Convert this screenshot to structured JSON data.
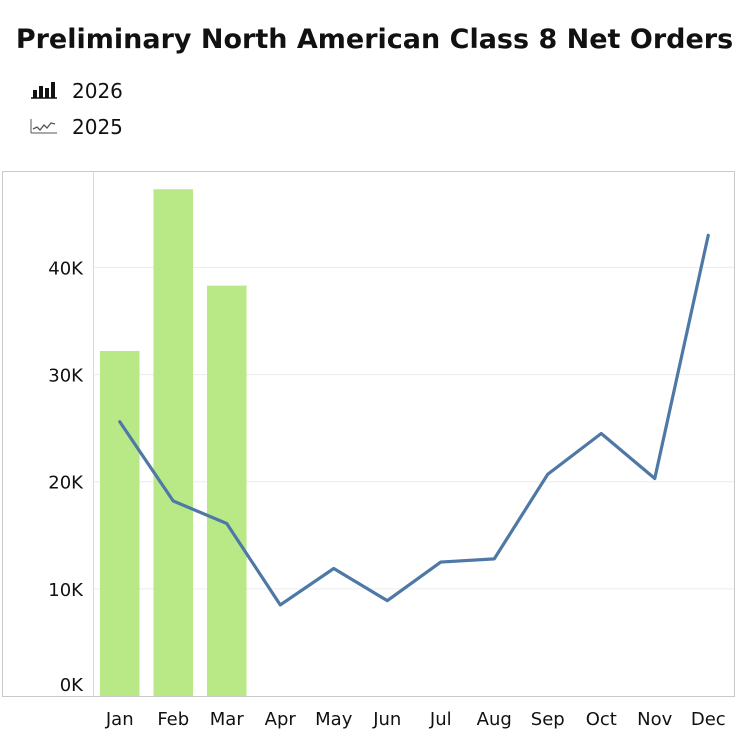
{
  "chart_data": {
    "type": "bar+line",
    "title": "Preliminary North American Class 8 Net Orders",
    "categories": [
      "Jan",
      "Feb",
      "Mar",
      "Apr",
      "May",
      "Jun",
      "Jul",
      "Aug",
      "Sep",
      "Oct",
      "Nov",
      "Dec"
    ],
    "series": [
      {
        "name": "2026",
        "type": "bar",
        "color": "#b9e987",
        "values": [
          32200,
          47300,
          38300,
          null,
          null,
          null,
          null,
          null,
          null,
          null,
          null,
          null
        ]
      },
      {
        "name": "2025",
        "type": "line",
        "color": "#4e78a6",
        "values": [
          25600,
          18200,
          16100,
          8500,
          11900,
          8900,
          12500,
          12800,
          20700,
          24500,
          20300,
          43000
        ]
      }
    ],
    "y_ticks": [
      {
        "value": 0,
        "label": "0K"
      },
      {
        "value": 10000,
        "label": "10K"
      },
      {
        "value": 20000,
        "label": "20K"
      },
      {
        "value": 30000,
        "label": "30K"
      },
      {
        "value": 40000,
        "label": "40K"
      }
    ],
    "ylim": [
      0,
      49000
    ],
    "grid": true,
    "legend_position": "top-left"
  }
}
